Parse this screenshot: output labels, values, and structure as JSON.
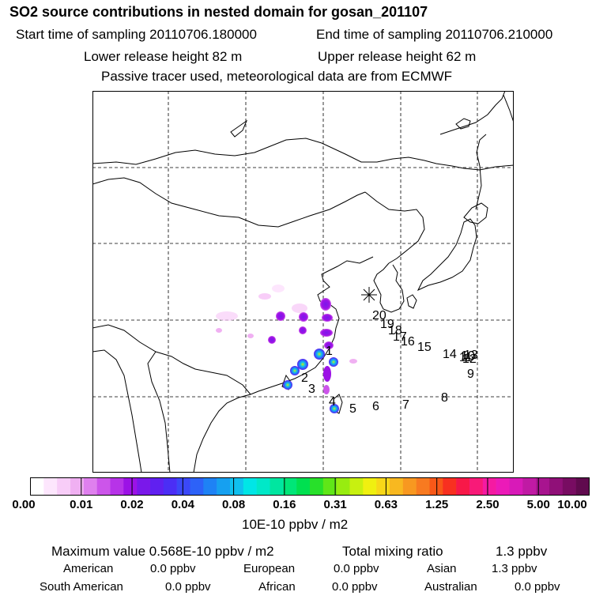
{
  "title": "SO2 source contributions in nested domain for gosan_201107",
  "header": {
    "start_time": "Start time of sampling 20110706.180000",
    "end_time": "End time of sampling 20110706.210000",
    "lower_height": "Lower release height   82 m",
    "upper_height": "Upper release height   62 m",
    "tracer_note": "Passive tracer used, meteorological data are from ECMWF"
  },
  "map": {
    "trajectory_labels": [
      "1",
      "2",
      "3",
      "4",
      "5",
      "6",
      "7",
      "8",
      "9",
      "10",
      "11",
      "12",
      "13",
      "14",
      "15",
      "16",
      "17",
      "18",
      "19",
      "20"
    ]
  },
  "colorbar": {
    "ticks": [
      "0.00",
      "0.01",
      "0.02",
      "0.04",
      "0.08",
      "0.16",
      "0.31",
      "0.63",
      "1.25",
      "2.50",
      "5.00",
      "10.00"
    ],
    "colors": [
      "#ffffff",
      "#fde6fd",
      "#f8cdf8",
      "#f0b0f2",
      "#df80ee",
      "#cc55ea",
      "#b733e8",
      "#9c12e6",
      "#7a18ea",
      "#6020f0",
      "#4b2ef5",
      "#3b48f8",
      "#2d62f8",
      "#1e82f5",
      "#16a0f0",
      "#10c0ee",
      "#00e6e6",
      "#00e8c8",
      "#00e6a0",
      "#00e678",
      "#00e050",
      "#28e02a",
      "#60e618",
      "#98ec10",
      "#c8f010",
      "#f0f010",
      "#f8d818",
      "#f8b820",
      "#f89820",
      "#f87a20",
      "#f85818",
      "#f83020",
      "#f81848",
      "#f81a78",
      "#f51aa2",
      "#ec1ab8",
      "#d81ab8",
      "#c01aa4",
      "#a8148f",
      "#901078",
      "#780c62",
      "#600a4e"
    ],
    "unit": "10E-10 ppbv / m2"
  },
  "stats": {
    "max_value": "Maximum value  0.568E-10 ppbv / m2",
    "total_label": "Total mixing ratio",
    "total_value": "1.3 ppbv",
    "regions": [
      {
        "label": "American",
        "value": "0.0 ppbv"
      },
      {
        "label": "European",
        "value": "0.0 ppbv"
      },
      {
        "label": "Asian",
        "value": "1.3 ppbv"
      },
      {
        "label": "South American",
        "value": "0.0 ppbv"
      },
      {
        "label": "African",
        "value": "0.0 ppbv"
      },
      {
        "label": "Australian",
        "value": "0.0 ppbv"
      }
    ]
  }
}
